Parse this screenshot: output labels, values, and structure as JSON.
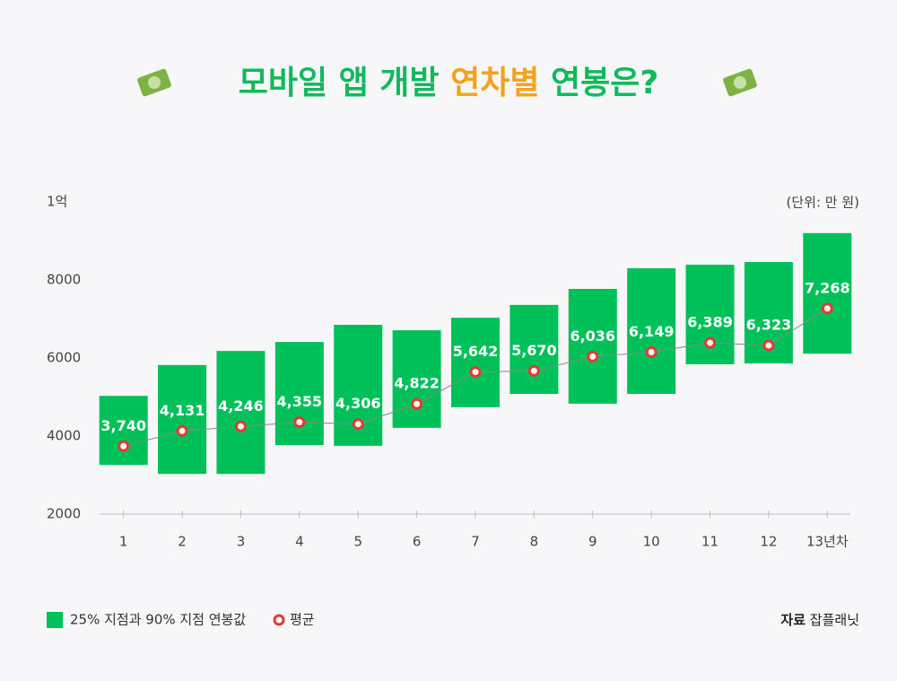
{
  "chart_data": {
    "type": "floating_bar",
    "title": [
      "모바일 앱 개발 ",
      "연차별",
      " 연봉은?"
    ],
    "unit": "(단위: 만 원)",
    "categories": [
      "1",
      "2",
      "3",
      "4",
      "5",
      "6",
      "7",
      "8",
      "9",
      "10",
      "11",
      "12",
      "13년차"
    ],
    "series": [
      {
        "name": "25% 지점과 90% 지점 연봉값",
        "color": "#00c05a",
        "low": [
          3260,
          3030,
          3030,
          3770,
          3750,
          4210,
          4740,
          5080,
          4830,
          5080,
          5840,
          5860,
          6110
        ],
        "high": [
          5030,
          5820,
          6180,
          6410,
          6850,
          6710,
          7030,
          7360,
          7770,
          8300,
          8390,
          8460,
          9200
        ]
      },
      {
        "name": "평균",
        "color": "#e53935",
        "values": [
          3740,
          4131,
          4246,
          4355,
          4306,
          4822,
          5642,
          5670,
          6036,
          6149,
          6389,
          6323,
          7268
        ],
        "value_labels": [
          "3,740",
          "4,131",
          "4,246",
          "4,355",
          "4,306",
          "4,822",
          "5,642",
          "5,670",
          "6,036",
          "6,149",
          "6,389",
          "6,323",
          "7,268"
        ]
      }
    ],
    "ylim": [
      2000,
      10000
    ],
    "yticks": [
      2000,
      4000,
      6000,
      8000,
      {
        "value": 10000,
        "label": "1억"
      }
    ],
    "grid": false,
    "source_label": "자료",
    "source": "잡플래닛"
  }
}
